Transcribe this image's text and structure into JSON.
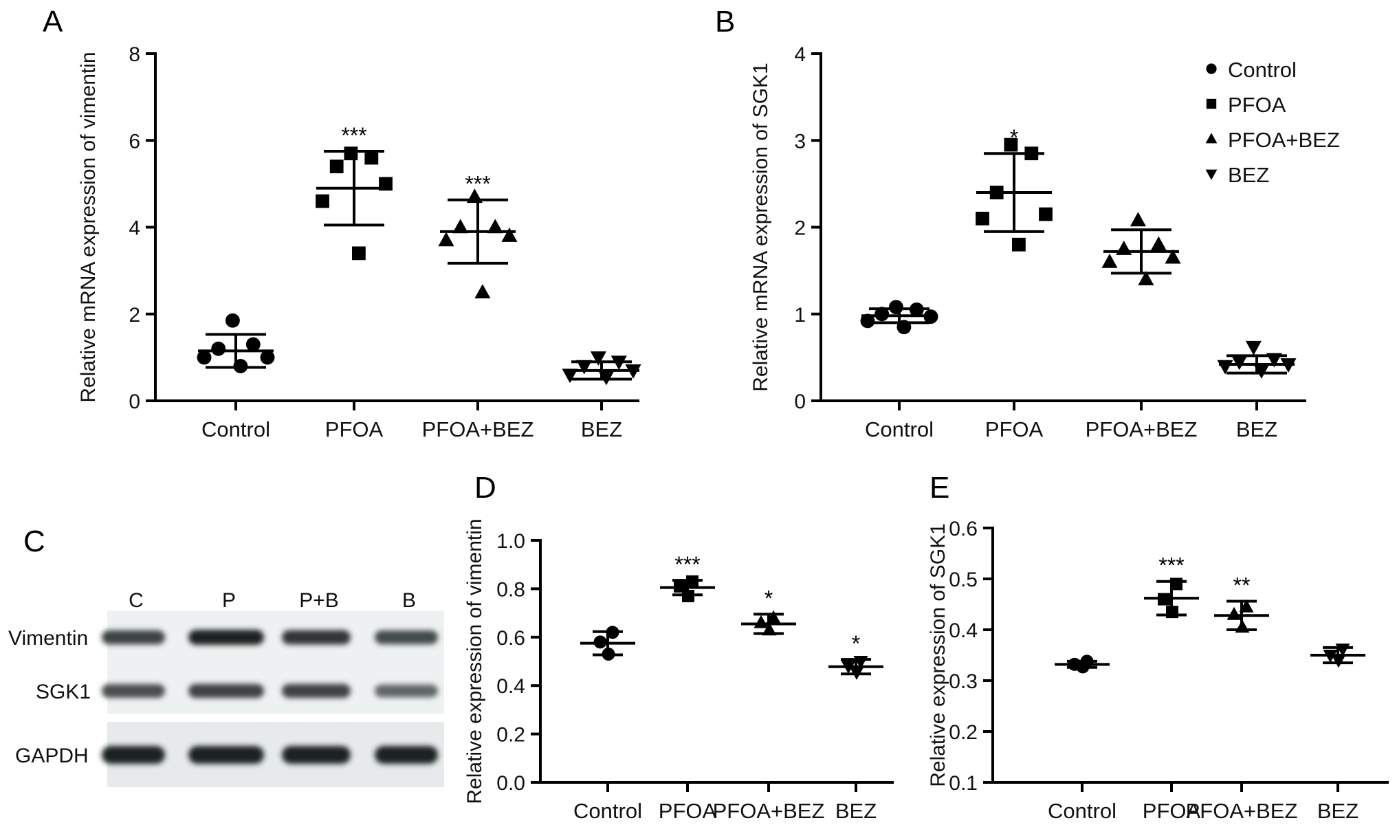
{
  "chart_data": [
    {
      "panel": "A",
      "type": "scatter",
      "ylabel": "Relative mRNA expression of vimentin",
      "ylim": [
        0,
        8
      ],
      "yticks": [
        0,
        2,
        4,
        6,
        8
      ],
      "categories": [
        "Control",
        "PFOA",
        "PFOA+BEZ",
        "BEZ"
      ],
      "markers": [
        "circle",
        "square",
        "triangle-up",
        "triangle-down"
      ],
      "groups": [
        {
          "points": [
            1.85,
            1.3,
            1.2,
            1.0,
            1.0,
            0.8
          ],
          "mean": 1.15,
          "sd": 0.38,
          "sig": ""
        },
        {
          "points": [
            5.7,
            5.6,
            5.4,
            5.0,
            4.6,
            3.4
          ],
          "mean": 4.9,
          "sd": 0.85,
          "sig": "***"
        },
        {
          "points": [
            4.7,
            4.0,
            4.0,
            3.8,
            3.7,
            2.5
          ],
          "mean": 3.9,
          "sd": 0.73,
          "sig": "***"
        },
        {
          "points": [
            1.0,
            0.9,
            0.8,
            0.7,
            0.6,
            0.55
          ],
          "mean": 0.7,
          "sd": 0.2,
          "sig": ""
        }
      ]
    },
    {
      "panel": "B",
      "type": "scatter",
      "ylabel": "Relative mRNA expression of SGK1",
      "ylim": [
        0,
        4
      ],
      "yticks": [
        0,
        1,
        2,
        3,
        4
      ],
      "categories": [
        "Control",
        "PFOA",
        "PFOA+BEZ",
        "BEZ"
      ],
      "markers": [
        "circle",
        "square",
        "triangle-up",
        "triangle-down"
      ],
      "legend": {
        "position": "top-right",
        "entries": [
          "Control",
          "PFOA",
          "PFOA+BEZ",
          "BEZ"
        ]
      },
      "groups": [
        {
          "points": [
            1.08,
            1.05,
            1.0,
            0.97,
            0.92,
            0.85
          ],
          "mean": 0.98,
          "sd": 0.08,
          "sig": ""
        },
        {
          "points": [
            2.95,
            2.85,
            2.4,
            2.15,
            2.1,
            1.8
          ],
          "mean": 2.4,
          "sd": 0.45,
          "sig": "*"
        },
        {
          "points": [
            2.08,
            1.8,
            1.75,
            1.65,
            1.6,
            1.4
          ],
          "mean": 1.72,
          "sd": 0.25,
          "sig": ""
        },
        {
          "points": [
            0.62,
            0.48,
            0.45,
            0.42,
            0.4,
            0.35
          ],
          "mean": 0.42,
          "sd": 0.1,
          "sig": ""
        }
      ]
    },
    {
      "panel": "D",
      "type": "scatter",
      "ylabel": "Relative expression of vimentin",
      "ylim": [
        0.0,
        1.0
      ],
      "yticks": [
        0.0,
        0.2,
        0.4,
        0.6,
        0.8,
        1.0
      ],
      "categories": [
        "Control",
        "PFOA",
        "PFOA+BEZ",
        "BEZ"
      ],
      "markers": [
        "circle",
        "square",
        "triangle-up",
        "triangle-down"
      ],
      "groups": [
        {
          "points": [
            0.62,
            0.58,
            0.53
          ],
          "mean": 0.575,
          "sd": 0.048,
          "sig": ""
        },
        {
          "points": [
            0.83,
            0.81,
            0.77
          ],
          "mean": 0.805,
          "sd": 0.03,
          "sig": "***"
        },
        {
          "points": [
            0.68,
            0.66,
            0.63
          ],
          "mean": 0.655,
          "sd": 0.04,
          "sig": "*"
        },
        {
          "points": [
            0.5,
            0.48,
            0.455
          ],
          "mean": 0.478,
          "sd": 0.03,
          "sig": "*"
        }
      ]
    },
    {
      "panel": "E",
      "type": "scatter",
      "ylabel": "Relative expression of SGK1",
      "ylim": [
        0.1,
        0.6
      ],
      "yticks": [
        0.1,
        0.2,
        0.3,
        0.4,
        0.5,
        0.6
      ],
      "categories": [
        "Control",
        "PFOA",
        "PFOA+BEZ",
        "BEZ"
      ],
      "markers": [
        "circle",
        "square",
        "triangle-up",
        "triangle-down"
      ],
      "groups": [
        {
          "points": [
            0.338,
            0.332,
            0.327
          ],
          "mean": 0.332,
          "sd": 0.006,
          "sig": ""
        },
        {
          "points": [
            0.49,
            0.46,
            0.435
          ],
          "mean": 0.462,
          "sd": 0.033,
          "sig": "***"
        },
        {
          "points": [
            0.445,
            0.43,
            0.405
          ],
          "mean": 0.428,
          "sd": 0.028,
          "sig": "**"
        },
        {
          "points": [
            0.362,
            0.35,
            0.34
          ],
          "mean": 0.35,
          "sd": 0.015,
          "sig": ""
        }
      ]
    }
  ],
  "western_blot": {
    "panel": "C",
    "lanes": [
      "C",
      "P",
      "P+B",
      "B"
    ],
    "rows": [
      {
        "label": "Vimentin",
        "intensity": [
          0.75,
          1.0,
          0.85,
          0.7
        ]
      },
      {
        "label": "SGK1",
        "intensity": [
          0.65,
          0.75,
          0.75,
          0.45
        ]
      },
      {
        "label": "GAPDH",
        "intensity": [
          1.0,
          1.0,
          1.0,
          1.0
        ]
      }
    ]
  }
}
